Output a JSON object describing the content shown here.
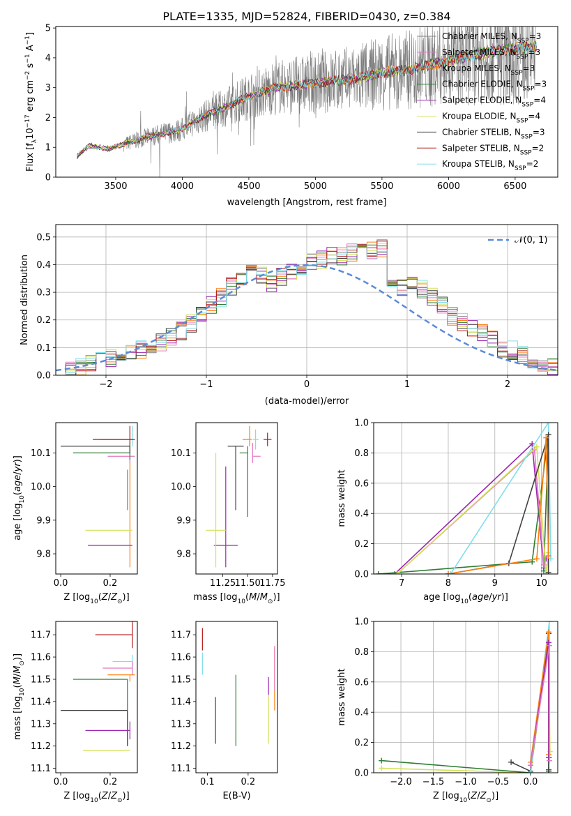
{
  "title": "PLATE=1335, MJD=52824, FIBERID=0430, z=0.384",
  "colors": {
    "chabrier_miles": "#808080",
    "salpeter_miles": "#e377c2",
    "kroupa_miles": "#ff7f0e",
    "chabrier_elodie": "#2e7d32",
    "salpeter_elodie": "#9c27b0",
    "kroupa_elodie": "#d4e157",
    "chabrier_stelib": "#424242",
    "salpeter_stelib": "#b71c1c",
    "kroupa_stelib": "#80deea",
    "normal": "#5b8bd6"
  },
  "chart_data": [
    {
      "id": "spectrum",
      "type": "line",
      "xlabel": "wavelength [Angstrom, rest frame]",
      "ylabel": "Flux [f_λ 10^-17 erg cm^-2 s^-1 A^-1]",
      "xlim": [
        3050,
        6820
      ],
      "ylim": [
        0,
        5.05
      ],
      "xticks": [
        3500,
        4000,
        4500,
        5000,
        5500,
        6000,
        6500
      ],
      "yticks": [
        0,
        1,
        2,
        3,
        4,
        5
      ],
      "legend_position": "top-right",
      "data_anchor": {
        "x": [
          3210,
          3300,
          3450,
          3560,
          3700,
          3900,
          4000,
          4100,
          4300,
          4500,
          4700,
          4900,
          5100,
          5300,
          5500,
          5700,
          5900,
          6100,
          6300,
          6500,
          6660
        ],
        "y": [
          0.7,
          1.05,
          0.95,
          1.1,
          1.3,
          1.5,
          1.6,
          1.9,
          2.3,
          2.7,
          3.0,
          3.1,
          3.2,
          3.3,
          3.5,
          3.6,
          3.8,
          4.0,
          4.2,
          4.3,
          4.4
        ]
      },
      "series": [
        {
          "name": "Chabrier MILES, N_SSP=3",
          "color_key": "chabrier_miles"
        },
        {
          "name": "Salpeter MILES, N_SSP=3",
          "color_key": "salpeter_miles"
        },
        {
          "name": "Kroupa MILES, N_SSP=3",
          "color_key": "kroupa_miles"
        },
        {
          "name": "Chabrier ELODIE, N_SSP=3",
          "color_key": "chabrier_elodie"
        },
        {
          "name": "Salpeter ELODIE, N_SSP=4",
          "color_key": "salpeter_elodie"
        },
        {
          "name": "Kroupa ELODIE, N_SSP=4",
          "color_key": "kroupa_elodie"
        },
        {
          "name": "Chabrier STELIB, N_SSP=3",
          "color_key": "chabrier_stelib"
        },
        {
          "name": "Salpeter STELIB, N_SSP=2",
          "color_key": "salpeter_stelib"
        },
        {
          "name": "Kroupa STELIB, N_SSP=2",
          "color_key": "kroupa_stelib"
        }
      ]
    },
    {
      "id": "residuals",
      "type": "histogram",
      "xlabel": "(data-model)/error",
      "ylabel": "Normed distribution",
      "xlim": [
        -2.5,
        2.5
      ],
      "ylim": [
        0,
        0.545
      ],
      "xticks": [
        -2,
        -1,
        0,
        1,
        2
      ],
      "yticks": [
        0.0,
        0.1,
        0.2,
        0.3,
        0.4,
        0.5
      ],
      "grid": true,
      "legend": "𝒩(0, 1)",
      "legend_position": "top-right",
      "bins_from": -2.5,
      "bin_width": 0.1,
      "base_values": [
        0.01,
        0.02,
        0.03,
        0.04,
        0.05,
        0.06,
        0.07,
        0.08,
        0.09,
        0.1,
        0.12,
        0.14,
        0.16,
        0.19,
        0.22,
        0.25,
        0.28,
        0.32,
        0.35,
        0.37,
        0.36,
        0.33,
        0.36,
        0.37,
        0.38,
        0.41,
        0.42,
        0.43,
        0.43,
        0.44,
        0.44,
        0.45,
        0.46,
        0.34,
        0.31,
        0.33,
        0.31,
        0.28,
        0.25,
        0.21,
        0.19,
        0.17,
        0.15,
        0.13,
        0.1,
        0.09,
        0.07,
        0.05,
        0.04,
        0.03
      ]
    },
    {
      "id": "age-vs-z",
      "type": "errorbar",
      "xlabel": "Z [log10(Z/Z⊙)]",
      "ylabel": "age  [log10(age/yr)]",
      "xlim": [
        -0.02,
        0.31
      ],
      "ylim": [
        9.74,
        10.19
      ],
      "xticks": [
        0.0,
        0.2
      ],
      "yticks": [
        9.8,
        9.9,
        10.0,
        10.1
      ],
      "points": [
        {
          "x": 0.28,
          "xerr": [
            0.12,
            0.02
          ],
          "y": 10.14,
          "yerr": [
            0.38,
            0.04
          ],
          "color_key": "kroupa_miles"
        },
        {
          "x": 0.29,
          "xerr": [
            0.0,
            0.01
          ],
          "y": 10.14,
          "yerr": [
            0.02,
            0.04
          ],
          "color_key": "kroupa_stelib"
        },
        {
          "x": 0.28,
          "xerr": [
            0.15,
            0.02
          ],
          "y": 10.14,
          "yerr": [
            0.02,
            0.04
          ],
          "color_key": "salpeter_stelib"
        },
        {
          "x": 0.28,
          "xerr": [
            0.09,
            0.02
          ],
          "y": 10.09,
          "yerr": [
            0.02,
            0.04
          ],
          "color_key": "salpeter_miles"
        },
        {
          "x": 0.28,
          "xerr": [
            0.23,
            0.0
          ],
          "y": 10.1,
          "yerr": [
            0.02,
            0.03
          ],
          "color_key": "chabrier_elodie"
        },
        {
          "x": 0.28,
          "xerr": [
            0.28,
            0.0
          ],
          "y": 10.12,
          "yerr": [
            0.02,
            0.0
          ],
          "color_key": "chabrier_stelib"
        },
        {
          "x": 0.27,
          "xerr": [
            0.0,
            0.0
          ],
          "y": 10.0,
          "yerr": [
            0.07,
            0.05
          ],
          "color_key": "chabrier_miles"
        },
        {
          "x": 0.29,
          "xerr": [
            0.19,
            0.0
          ],
          "y": 9.87,
          "yerr": [
            0.0,
            0.0
          ],
          "color_key": "kroupa_elodie"
        },
        {
          "x": 0.29,
          "xerr": [
            0.18,
            0.0
          ],
          "y": 9.825,
          "yerr": [
            0.0,
            0.0
          ],
          "color_key": "salpeter_elodie"
        }
      ]
    },
    {
      "id": "age-vs-mass",
      "type": "errorbar",
      "xlabel": "mass [log10(M/M⊙)]",
      "ylabel": "",
      "xlim": [
        10.98,
        11.8
      ],
      "ylim": [
        9.74,
        10.19
      ],
      "xticks": [
        11.25,
        11.5,
        11.75
      ],
      "yticks": [
        9.8,
        9.9,
        10.0,
        10.1
      ],
      "points": [
        {
          "x": 11.7,
          "xerr": [
            0.04,
            0.04
          ],
          "y": 10.14,
          "yerr": [
            0.02,
            0.02
          ],
          "color_key": "salpeter_stelib"
        },
        {
          "x": 11.58,
          "xerr": [
            0.03,
            0.03
          ],
          "y": 10.14,
          "yerr": [
            0.03,
            0.03
          ],
          "color_key": "kroupa_stelib"
        },
        {
          "x": 11.55,
          "xerr": [
            0.0,
            0.08
          ],
          "y": 10.09,
          "yerr": [
            0.02,
            0.04
          ],
          "color_key": "salpeter_miles"
        },
        {
          "x": 11.52,
          "xerr": [
            0.07,
            0.02
          ],
          "y": 10.14,
          "yerr": [
            0.02,
            0.04
          ],
          "color_key": "kroupa_miles"
        },
        {
          "x": 11.5,
          "xerr": [
            0.08,
            0.0
          ],
          "y": 10.1,
          "yerr": [
            0.19,
            0.02
          ],
          "color_key": "chabrier_elodie"
        },
        {
          "x": 11.38,
          "xerr": [
            0.08,
            0.08
          ],
          "y": 10.12,
          "yerr": [
            0.19,
            0.0
          ],
          "color_key": "chabrier_stelib"
        },
        {
          "x": 11.28,
          "xerr": [
            0.0,
            0.0
          ],
          "y": 9.93,
          "yerr": [
            0.17,
            0.13
          ],
          "color_key": "salpeter_elodie"
        },
        {
          "x": 11.28,
          "xerr": [
            0.12,
            0.12
          ],
          "y": 9.825,
          "yerr": [
            0.0,
            0.0
          ],
          "color_key": "salpeter_elodie"
        },
        {
          "x": 11.18,
          "xerr": [
            0.0,
            0.0
          ],
          "y": 9.93,
          "yerr": [
            0.17,
            0.17
          ],
          "color_key": "kroupa_elodie"
        },
        {
          "x": 11.18,
          "xerr": [
            0.1,
            0.1
          ],
          "y": 9.87,
          "yerr": [
            0.0,
            0.0
          ],
          "color_key": "kroupa_elodie"
        }
      ]
    },
    {
      "id": "weight-vs-age",
      "type": "line",
      "xlabel": "age  [log10(age/yr)]",
      "ylabel": "mass weight",
      "xlim": [
        6.4,
        10.35
      ],
      "ylim": [
        0,
        1.0
      ],
      "xticks": [
        7,
        8,
        9,
        10
      ],
      "yticks": [
        0.0,
        0.2,
        0.4,
        0.6,
        0.8,
        1.0
      ],
      "grid": true,
      "series": [
        {
          "color_key": "salpeter_elodie",
          "x": [
            6.85,
            9.8,
            10.05,
            10.1
          ],
          "y": [
            0.0,
            0.86,
            0.04,
            0.1
          ]
        },
        {
          "color_key": "chabrier_elodie",
          "x": [
            6.5,
            9.8,
            10.15,
            10.05
          ],
          "y": [
            0.0,
            0.08,
            0.92,
            0.02
          ]
        },
        {
          "color_key": "salpeter_miles",
          "x": [
            6.9,
            9.85,
            10.05
          ],
          "y": [
            0.0,
            0.82,
            0.06
          ]
        },
        {
          "color_key": "kroupa_elodie",
          "x": [
            6.9,
            9.9,
            10.1,
            10.15
          ],
          "y": [
            0.0,
            0.84,
            0.0,
            0.14
          ]
        },
        {
          "color_key": "kroupa_stelib",
          "x": [
            8.05,
            10.15,
            10.2
          ],
          "y": [
            0.0,
            1.0,
            0.1
          ]
        },
        {
          "color_key": "chabrier_stelib",
          "x": [
            8.0,
            9.3,
            10.15,
            10.15
          ],
          "y": [
            0.0,
            0.07,
            0.92,
            0.01
          ]
        },
        {
          "color_key": "kroupa_miles",
          "x": [
            8.0,
            9.9,
            10.1,
            10.15
          ],
          "y": [
            0.0,
            0.1,
            0.9,
            0.12
          ]
        }
      ]
    },
    {
      "id": "mass-vs-z",
      "type": "errorbar",
      "xlabel": "Z [log10(Z/Z⊙)]",
      "ylabel": "mass [log10(M/M⊙)]",
      "xlim": [
        -0.02,
        0.31
      ],
      "ylim": [
        11.08,
        11.76
      ],
      "xticks": [
        0.0,
        0.2
      ],
      "yticks": [
        11.1,
        11.2,
        11.3,
        11.4,
        11.5,
        11.6,
        11.7
      ],
      "points": [
        {
          "x": 0.29,
          "xerr": [
            0.15,
            0.0
          ],
          "y": 11.7,
          "yerr": [
            0.06,
            0.06
          ],
          "color_key": "salpeter_stelib"
        },
        {
          "x": 0.29,
          "xerr": [
            0.08,
            0.0
          ],
          "y": 11.58,
          "yerr": [
            0.03,
            0.03
          ],
          "color_key": "kroupa_stelib"
        },
        {
          "x": 0.29,
          "xerr": [
            0.12,
            0.0
          ],
          "y": 11.55,
          "yerr": [
            0.03,
            0.03
          ],
          "color_key": "salpeter_miles"
        },
        {
          "x": 0.28,
          "xerr": [
            0.09,
            0.02
          ],
          "y": 11.52,
          "yerr": [
            0.03,
            0.0
          ],
          "color_key": "kroupa_miles"
        },
        {
          "x": 0.27,
          "xerr": [
            0.22,
            0.0
          ],
          "y": 11.5,
          "yerr": [
            0.3,
            0.0
          ],
          "color_key": "chabrier_elodie"
        },
        {
          "x": 0.27,
          "xerr": [
            0.27,
            0.0
          ],
          "y": 11.36,
          "yerr": [
            0.16,
            0.0
          ],
          "color_key": "chabrier_stelib"
        },
        {
          "x": 0.28,
          "xerr": [
            0.18,
            0.0
          ],
          "y": 11.27,
          "yerr": [
            0.04,
            0.04
          ],
          "color_key": "salpeter_elodie"
        },
        {
          "x": 0.28,
          "xerr": [
            0.19,
            0.0
          ],
          "y": 11.18,
          "yerr": [
            0.0,
            0.0
          ],
          "color_key": "kroupa_elodie"
        }
      ]
    },
    {
      "id": "mass-vs-ebv",
      "type": "errorbar",
      "xlabel": "E(B-V)",
      "ylabel": "",
      "xlim": [
        0.072,
        0.272
      ],
      "ylim": [
        11.08,
        11.76
      ],
      "xticks": [
        0.1,
        0.2
      ],
      "yticks": [
        11.1,
        11.2,
        11.3,
        11.4,
        11.5,
        11.6,
        11.7
      ],
      "points": [
        {
          "x": 0.088,
          "y": 11.68,
          "yerr": [
            0.05,
            0.05
          ],
          "color_key": "salpeter_stelib"
        },
        {
          "x": 0.088,
          "y": 11.57,
          "yerr": [
            0.05,
            0.05
          ],
          "color_key": "kroupa_stelib"
        },
        {
          "x": 0.12,
          "y": 11.32,
          "yerr": [
            0.11,
            0.1
          ],
          "color_key": "chabrier_stelib"
        },
        {
          "x": 0.17,
          "y": 11.36,
          "yerr": [
            0.16,
            0.16
          ],
          "color_key": "chabrier_elodie"
        },
        {
          "x": 0.25,
          "y": 11.32,
          "yerr": [
            0.11,
            0.11
          ],
          "color_key": "kroupa_elodie"
        },
        {
          "x": 0.25,
          "y": 11.47,
          "yerr": [
            0.04,
            0.04
          ],
          "color_key": "salpeter_elodie"
        },
        {
          "x": 0.265,
          "y": 11.5,
          "yerr": [
            0.14,
            0.14
          ],
          "color_key": "kroupa_miles"
        },
        {
          "x": 0.265,
          "y": 11.55,
          "yerr": [
            0.1,
            0.1
          ],
          "color_key": "salpeter_miles"
        }
      ]
    },
    {
      "id": "weight-vs-z",
      "type": "line",
      "xlabel": "Z [log10(Z/Z⊙)]",
      "ylabel": "mass weight",
      "xlim": [
        -2.42,
        0.42
      ],
      "ylim": [
        0,
        1.0
      ],
      "xticks": [
        -2.0,
        -1.5,
        -1.0,
        -0.5,
        0.0
      ],
      "yticks": [
        0.0,
        0.2,
        0.4,
        0.6,
        0.8,
        1.0
      ],
      "grid": true,
      "series": [
        {
          "color_key": "kroupa_elodie",
          "x": [
            -2.3,
            0.0,
            0.28,
            0.3
          ],
          "y": [
            0.03,
            0.0,
            0.86,
            0.14
          ]
        },
        {
          "color_key": "chabrier_elodie",
          "x": [
            -2.3,
            0.0,
            0.28,
            0.28
          ],
          "y": [
            0.08,
            0.0,
            0.92,
            0.02
          ]
        },
        {
          "color_key": "chabrier_stelib",
          "x": [
            -0.3,
            0.0,
            0.28,
            0.28
          ],
          "y": [
            0.07,
            0.01,
            0.92,
            0.01
          ]
        },
        {
          "color_key": "kroupa_stelib",
          "x": [
            0.0,
            0.29,
            0.29
          ],
          "y": [
            0.0,
            1.0,
            0.1
          ]
        },
        {
          "color_key": "kroupa_miles",
          "x": [
            0.0,
            0.28,
            0.28
          ],
          "y": [
            0.07,
            0.93,
            0.12
          ]
        },
        {
          "color_key": "salpeter_elodie",
          "x": [
            0.0,
            0.28,
            0.28
          ],
          "y": [
            0.05,
            0.86,
            0.1
          ]
        },
        {
          "color_key": "salpeter_miles",
          "x": [
            0.0,
            0.29,
            0.29
          ],
          "y": [
            0.05,
            0.84,
            0.08
          ]
        }
      ]
    }
  ]
}
